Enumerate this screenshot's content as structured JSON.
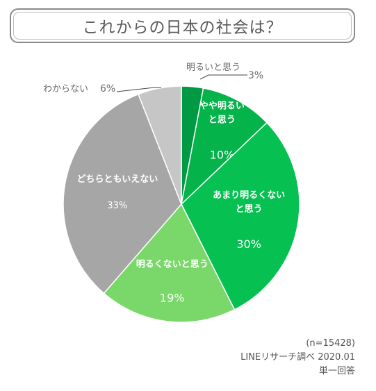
{
  "title": "これからの日本の社会は？",
  "chart_data": {
    "type": "pie",
    "slices": [
      {
        "label_lines": [
          "明るいと思う"
        ],
        "value": 3,
        "display": "3%",
        "color": "#009944"
      },
      {
        "label_lines": [
          "やや明るい",
          "と思う"
        ],
        "value": 10,
        "display": "10%",
        "color": "#04b34a"
      },
      {
        "label_lines": [
          "あまり明るくない",
          "と思う"
        ],
        "value": 30,
        "display": "30%",
        "color": "#06c152"
      },
      {
        "label_lines": [
          "明るくないと思う"
        ],
        "value": 19,
        "display": "19%",
        "color": "#7ad86a"
      },
      {
        "label_lines": [
          "どちらともいえない"
        ],
        "value": 33,
        "display": "33%",
        "color": "#a6a6a6"
      },
      {
        "label_lines": [
          "わからない"
        ],
        "value": 6,
        "display": "6%",
        "color": "#c6c6c6"
      }
    ]
  },
  "footer": {
    "sample": "(n=15428)",
    "source": "LINEリサーチ調べ 2020.01",
    "note": "単一回答"
  }
}
